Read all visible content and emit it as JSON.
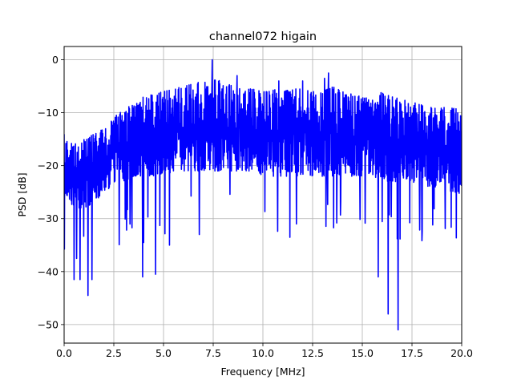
{
  "chart_data": {
    "type": "line",
    "title": "channel072 higain",
    "xlabel": "Frequency [MHz]",
    "ylabel": "PSD [dB]",
    "xlim": [
      0,
      20
    ],
    "ylim": [
      -53.5,
      2.5
    ],
    "xticks": [
      0,
      2.5,
      5,
      7.5,
      10,
      12.5,
      15,
      17.5,
      20
    ],
    "xtick_labels": [
      "0.0",
      "2.5",
      "5.0",
      "7.5",
      "10.0",
      "12.5",
      "15.0",
      "17.5",
      "20.0"
    ],
    "yticks": [
      0,
      -10,
      -20,
      -30,
      -40,
      -50
    ],
    "ytick_labels": [
      "0",
      "−10",
      "−20",
      "−30",
      "−40",
      "−50"
    ],
    "grid": true,
    "line_color": "#0000ff",
    "envelope": {
      "x": [
        0.0,
        0.5,
        1.0,
        1.5,
        2.0,
        2.5,
        3.0,
        3.5,
        4.0,
        4.5,
        5.0,
        5.5,
        6.0,
        6.5,
        7.0,
        7.5,
        8.0,
        8.5,
        9.0,
        9.5,
        10.0,
        10.5,
        11.0,
        11.5,
        12.0,
        12.5,
        13.0,
        13.5,
        14.0,
        14.5,
        15.0,
        15.5,
        16.0,
        16.5,
        17.0,
        17.5,
        18.0,
        18.5,
        19.0,
        19.5,
        20.0
      ],
      "upper": [
        -14,
        -16,
        -15,
        -14,
        -13,
        -11,
        -9,
        -8,
        -7,
        -6.5,
        -6,
        -5.5,
        -5,
        -4.5,
        -4,
        -3.5,
        -4,
        -5,
        -5,
        -5.5,
        -6,
        -5.5,
        -6,
        -5.5,
        -5.5,
        -6,
        -6,
        -5,
        -6,
        -6.5,
        -7,
        -7.5,
        -6,
        -7,
        -7.5,
        -8,
        -8.5,
        -9,
        -9,
        -9,
        -9
      ],
      "lower": [
        -25,
        -28,
        -28,
        -27,
        -25,
        -24,
        -23,
        -22,
        -22,
        -22,
        -22,
        -21,
        -21,
        -21,
        -21,
        -21,
        -21,
        -21,
        -21,
        -21,
        -22,
        -22,
        -22,
        -22,
        -22,
        -22,
        -22,
        -22,
        -22,
        -22,
        -22,
        -22,
        -23,
        -23,
        -23,
        -23,
        -24,
        -24,
        -24,
        -25,
        -26
      ]
    },
    "notable_points": [
      {
        "x": 7.45,
        "y": 0
      },
      {
        "x": 1.2,
        "y": -44.5
      },
      {
        "x": 0.5,
        "y": -41.5
      },
      {
        "x": 0.8,
        "y": -41.5
      },
      {
        "x": 1.4,
        "y": -41.5
      },
      {
        "x": 3.95,
        "y": -41
      },
      {
        "x": 4.6,
        "y": -40.5
      },
      {
        "x": 4.0,
        "y": -34.5
      },
      {
        "x": 5.3,
        "y": -35
      },
      {
        "x": 6.8,
        "y": -33
      },
      {
        "x": 15.8,
        "y": -41
      },
      {
        "x": 16.3,
        "y": -48
      },
      {
        "x": 16.8,
        "y": -51
      },
      {
        "x": 8.7,
        "y": -3
      },
      {
        "x": 13.3,
        "y": -2.5
      },
      {
        "x": 13.1,
        "y": -3.5
      },
      {
        "x": 12.0,
        "y": -4
      },
      {
        "x": 10.8,
        "y": -4
      }
    ]
  }
}
